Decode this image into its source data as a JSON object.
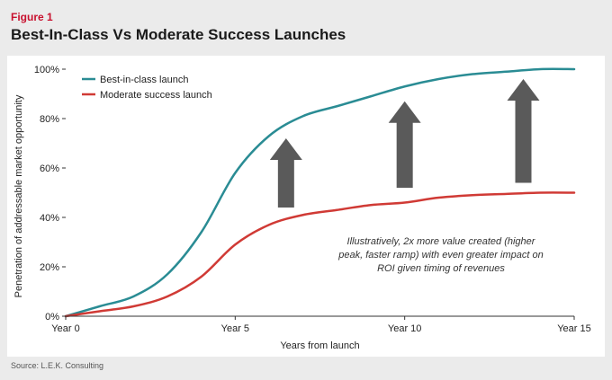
{
  "header": {
    "figure_label": "Figure 1",
    "title": "Best-In-Class Vs Moderate Success Launches"
  },
  "footer": {
    "source": "Source: L.E.K. Consulting"
  },
  "chart_data": {
    "type": "line",
    "xlabel": "Years from launch",
    "ylabel": "Penetration of addressable market opportunity",
    "xlim": [
      0,
      15
    ],
    "ylim": [
      0,
      100
    ],
    "x_ticks": [
      {
        "value": 0,
        "label": "Year 0"
      },
      {
        "value": 5,
        "label": "Year 5"
      },
      {
        "value": 10,
        "label": "Year 10"
      },
      {
        "value": 15,
        "label": "Year 15"
      }
    ],
    "y_ticks": [
      {
        "value": 0,
        "label": "0%"
      },
      {
        "value": 20,
        "label": "20%"
      },
      {
        "value": 40,
        "label": "40%"
      },
      {
        "value": 60,
        "label": "60%"
      },
      {
        "value": 80,
        "label": "80%"
      },
      {
        "value": 100,
        "label": "100%"
      }
    ],
    "grid": false,
    "legend": "top-left",
    "series": [
      {
        "name": "Best-in-class launch",
        "color": "#2a8c94",
        "x": [
          0,
          1,
          2,
          3,
          4,
          5,
          6,
          7,
          8,
          9,
          10,
          11,
          12,
          13,
          14,
          15
        ],
        "values": [
          0,
          4,
          8,
          17,
          34,
          58,
          73,
          81,
          85,
          89,
          93,
          96,
          98,
          99,
          100,
          100
        ]
      },
      {
        "name": "Moderate success launch",
        "color": "#d03a35",
        "x": [
          0,
          1,
          2,
          3,
          4,
          5,
          6,
          7,
          8,
          9,
          10,
          11,
          12,
          13,
          14,
          15
        ],
        "values": [
          0,
          2,
          4,
          8,
          16,
          29,
          37,
          41,
          43,
          45,
          46,
          48,
          49,
          49.5,
          50,
          50
        ]
      }
    ],
    "arrows": [
      {
        "x": 6.5,
        "from": 44,
        "to": 72
      },
      {
        "x": 10,
        "from": 52,
        "to": 87
      },
      {
        "x": 13.5,
        "from": 54,
        "to": 96
      }
    ],
    "arrow_color": "#5a5a5a",
    "annotation": "Illustratively, 2x more value created (higher peak, faster ramp) with even greater impact on ROI given timing of revenues",
    "axis_color": "#333333"
  }
}
